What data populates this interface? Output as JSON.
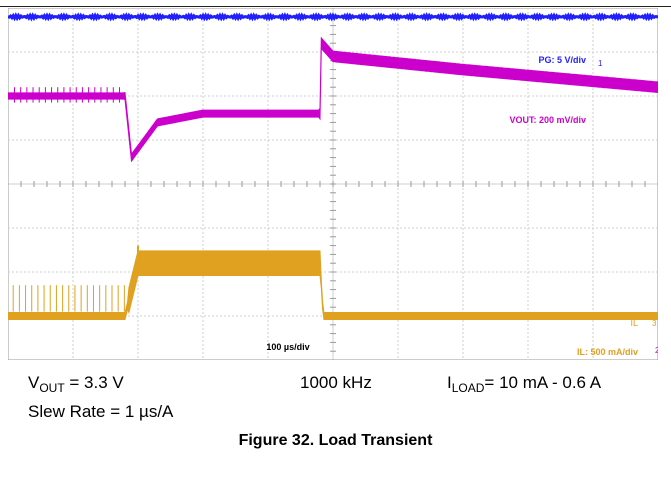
{
  "chart_data": {
    "type": "line",
    "title": "Figure 32. Load Transient",
    "timebase": "100 µs/div",
    "grid": true,
    "divisions": {
      "x": 10,
      "y": 8
    },
    "channels": [
      {
        "name": "PG: 5 V/div",
        "marker": "1",
        "color": "#1f1fff",
        "description": "Power Good stays high throughout",
        "times_us": [
          0,
          1000
        ],
        "levels_div": [
          7.8,
          7.8
        ]
      },
      {
        "name": "VOUT: 200 mV/div",
        "marker": "",
        "color": "#cc00cc",
        "description": "Output voltage undershoot on load step up, overshoot on load step down",
        "times_us": [
          0,
          180,
          190,
          230,
          300,
          400,
          480,
          482,
          500,
          700,
          1000
        ],
        "levels_div": [
          6.0,
          6.0,
          4.6,
          5.4,
          5.6,
          5.6,
          5.6,
          7.2,
          6.9,
          6.6,
          6.2
        ]
      },
      {
        "name": "IL: 500 mA/div",
        "marker": "3",
        "color": "#e0a020",
        "description": "Inductor current steps from 10 mA to 0.6 A and back",
        "times_us": [
          0,
          180,
          200,
          480,
          485,
          1000
        ],
        "levels_div": [
          1.0,
          1.0,
          2.2,
          2.2,
          1.0,
          1.0
        ]
      }
    ],
    "channel_labels": {
      "il_short": "IL",
      "ch2_marker": "2"
    }
  },
  "conditions": {
    "vout_main": "V",
    "vout_sub": "OUT",
    "vout_value": " = 3.3 V",
    "frequency": "1000 kHz",
    "iload_main": "I",
    "iload_sub": "LOAD",
    "iload_value": "= 10 mA - 0.6 A",
    "slew_rate": "Slew Rate = 1 µs/A"
  },
  "caption": "Figure 32. Load Transient"
}
